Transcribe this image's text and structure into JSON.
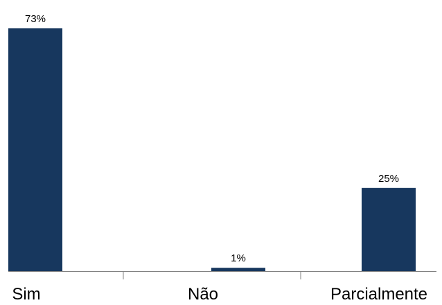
{
  "chart_data": {
    "type": "bar",
    "categories": [
      "Sim",
      "Não",
      "Parcialmente"
    ],
    "values": [
      73,
      1,
      25
    ],
    "data_labels": [
      "73%",
      "1%",
      "25%"
    ],
    "ylim": [
      0,
      73
    ],
    "grid": false,
    "legend": "none",
    "colors": {
      "bar": "#17375e",
      "axis": "#808080",
      "text": "#000000"
    }
  }
}
